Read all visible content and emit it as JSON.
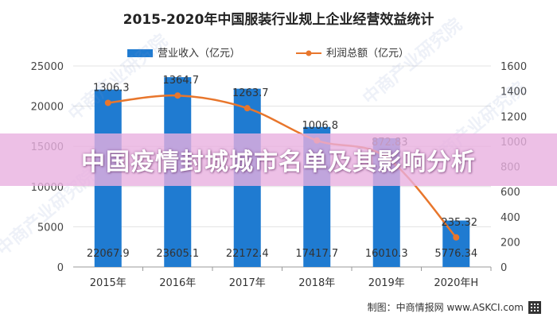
{
  "chart_data": {
    "type": "bar+line",
    "title": "2015-2020年中国服装行业规上企业经营效益统计",
    "categories": [
      "2015年",
      "2016年",
      "2017年",
      "2018年",
      "2019年",
      "2020年H"
    ],
    "series": [
      {
        "name": "营业收入（亿元）",
        "kind": "bar",
        "axis": "left",
        "color": "#1f7bd1",
        "values": [
          22067.9,
          23605.1,
          22172.4,
          17417.7,
          16010.3,
          5776.34
        ],
        "labels": [
          "22067.9",
          "23605.1",
          "22172.4",
          "17417.7",
          "16010.3",
          "5776.34"
        ]
      },
      {
        "name": "利润总额（亿元）",
        "kind": "line",
        "axis": "right",
        "color": "#e8762c",
        "values": [
          1306.3,
          1364.7,
          1263.7,
          1006.8,
          872.83,
          235.32
        ],
        "labels": [
          "1306.3",
          "1364.7",
          "1263.7",
          "1006.8",
          "872.83",
          "235.32"
        ]
      }
    ],
    "y_left": {
      "min": 0,
      "max": 25000,
      "ticks": [
        "0",
        "5000",
        "10000",
        "15000",
        "20000",
        "25000"
      ]
    },
    "y_right": {
      "min": 0,
      "max": 1600,
      "ticks": [
        "0",
        "200",
        "400",
        "600",
        "800",
        "1000",
        "1200",
        "1400",
        "1600"
      ]
    },
    "legend_position": "top-center",
    "grid": true
  },
  "overlay": {
    "headline": "中国疫情封城城市名单及其影响分析"
  },
  "footer": {
    "credit": "制图：中商情报网 www.ASKCI.com"
  },
  "watermark": {
    "text": "中商产业研究院"
  }
}
